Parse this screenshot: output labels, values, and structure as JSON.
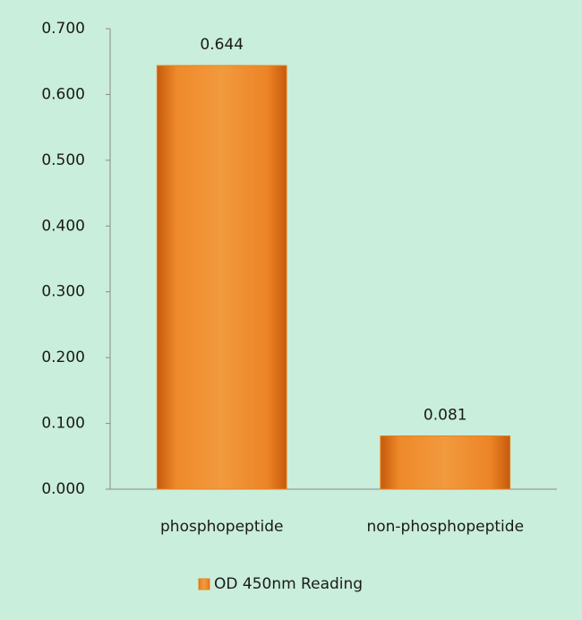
{
  "chart_data": {
    "type": "bar",
    "categories": [
      "phosphopeptide",
      "non-phosphopeptide"
    ],
    "series": [
      {
        "name": "OD 450nm Reading",
        "color": "#e8841f",
        "values": [
          0.644,
          0.081
        ]
      }
    ],
    "ylim": [
      0,
      0.7
    ],
    "yticks": [
      {
        "value": 0,
        "label": "0.000"
      },
      {
        "value": 0.1,
        "label": "0.100"
      },
      {
        "value": 0.2,
        "label": "0.200"
      },
      {
        "value": 0.3,
        "label": "0.300"
      },
      {
        "value": 0.4,
        "label": "0.400"
      },
      {
        "value": 0.5,
        "label": "0.500"
      },
      {
        "value": 0.6,
        "label": "0.600"
      },
      {
        "value": 0.7,
        "label": "0.700"
      }
    ],
    "grid": false,
    "legend": "bottom"
  }
}
